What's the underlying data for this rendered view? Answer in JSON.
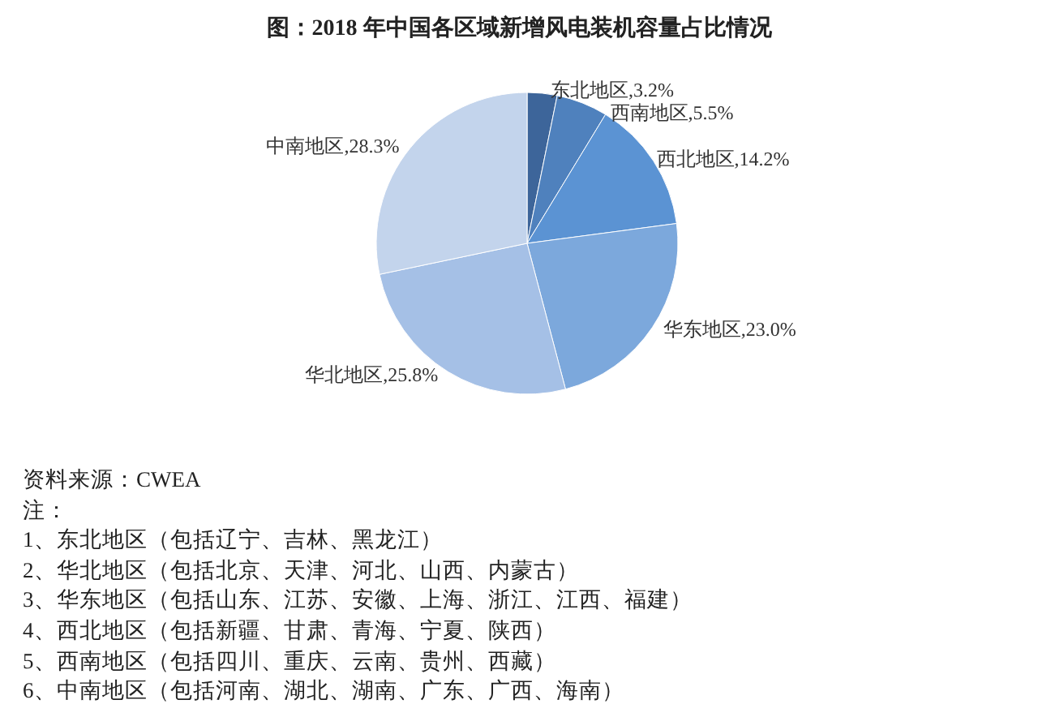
{
  "chart_data": {
    "type": "pie",
    "title": "图：2018 年中国各区域新增风电装机容量占比情况",
    "categories": [
      "东北地区",
      "西南地区",
      "西北地区",
      "华东地区",
      "华北地区",
      "中南地区"
    ],
    "values": [
      3.2,
      5.5,
      14.2,
      23.0,
      25.8,
      28.3
    ],
    "value_labels": [
      "3.2%",
      "5.5%",
      "14.2%",
      "23.0%",
      "25.8%",
      "28.3%"
    ],
    "colors": [
      "#3d659a",
      "#4f81bd",
      "#5b93d3",
      "#7ca8dc",
      "#a5c0e6",
      "#c3d4ec"
    ],
    "annotations": [
      "资料来源：CWEA",
      "注：",
      "1、东北地区（包括辽宁、吉林、黑龙江）",
      "2、华北地区（包括北京、天津、河北、山西、内蒙古）",
      "3、华东地区（包括山东、江苏、安徽、上海、浙江、江西、福建）",
      "4、西北地区（包括新疆、甘肃、青海、宁夏、陕西）",
      "5、西南地区（包括四川、重庆、云南、贵州、西藏）",
      "6、中南地区（包括河南、湖北、湖南、广东、广西、海南）"
    ]
  }
}
